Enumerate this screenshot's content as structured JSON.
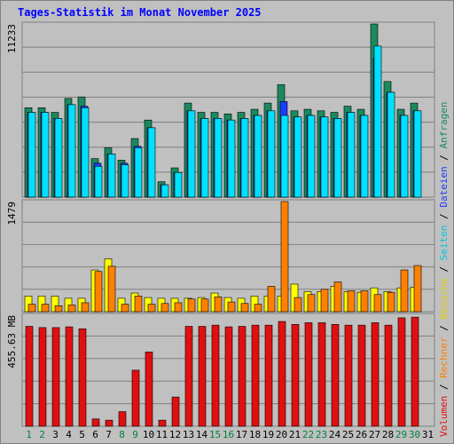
{
  "title": "Tages-Statistik im Monat November 2025",
  "chart_data": [
    {
      "type": "bar",
      "panel": "top",
      "max_label": "11233",
      "ylim": [
        0,
        11233
      ],
      "categories": [
        "1",
        "2",
        "3",
        "4",
        "5",
        "6",
        "7",
        "8",
        "9",
        "10",
        "11",
        "12",
        "13",
        "14",
        "15",
        "16",
        "17",
        "18",
        "19",
        "20",
        "21",
        "22",
        "23",
        "24",
        "25",
        "26",
        "27",
        "28",
        "29",
        "30"
      ],
      "series": [
        {
          "name": "Anfragen",
          "color": "#1a8a5e",
          "values": [
            5800,
            5800,
            5500,
            6400,
            6500,
            2500,
            3200,
            2400,
            3800,
            5000,
            1000,
            1900,
            6100,
            5500,
            5500,
            5400,
            5500,
            5700,
            6100,
            7300,
            5600,
            5700,
            5600,
            5500,
            5900,
            5700,
            11233,
            7500,
            5700,
            6100
          ]
        },
        {
          "name": "Dateien",
          "color": "#1e3cff",
          "values": [
            5500,
            5500,
            5100,
            6000,
            5900,
            2200,
            2800,
            2200,
            3300,
            4500,
            800,
            1600,
            5600,
            5100,
            5100,
            5000,
            5100,
            5300,
            5600,
            6200,
            5200,
            5300,
            5200,
            5100,
            5500,
            5300,
            9000,
            6800,
            5300,
            5600
          ]
        },
        {
          "name": "Seiten",
          "color": "#00e0ff",
          "values": [
            5500,
            5500,
            5100,
            6000,
            5800,
            2000,
            2800,
            2100,
            3200,
            4500,
            800,
            1600,
            5600,
            5100,
            5100,
            5000,
            5100,
            5300,
            5600,
            5300,
            5200,
            5300,
            5200,
            5100,
            5500,
            5300,
            9800,
            6800,
            5300,
            5600
          ]
        }
      ]
    },
    {
      "type": "bar",
      "panel": "middle",
      "max_label": "1479",
      "ylim": [
        0,
        1479
      ],
      "categories": [
        "1",
        "2",
        "3",
        "4",
        "5",
        "6",
        "7",
        "8",
        "9",
        "10",
        "11",
        "12",
        "13",
        "14",
        "15",
        "16",
        "17",
        "18",
        "19",
        "20",
        "21",
        "22",
        "23",
        "24",
        "25",
        "26",
        "27",
        "28",
        "29",
        "30"
      ],
      "series": [
        {
          "name": "Besuche",
          "color": "#ffff00",
          "values": [
            210,
            210,
            210,
            180,
            180,
            560,
            710,
            180,
            250,
            190,
            180,
            180,
            180,
            190,
            250,
            190,
            180,
            210,
            210,
            210,
            370,
            270,
            270,
            340,
            270,
            260,
            320,
            270,
            320,
            330
          ]
        },
        {
          "name": "Rechner",
          "color": "#ff8000",
          "values": [
            100,
            100,
            80,
            90,
            120,
            540,
            610,
            100,
            210,
            100,
            110,
            120,
            170,
            170,
            200,
            130,
            110,
            100,
            340,
            1479,
            190,
            230,
            300,
            400,
            280,
            280,
            230,
            260,
            560,
            620
          ]
        }
      ]
    },
    {
      "type": "bar",
      "panel": "bottom",
      "max_label": "455.63 MB",
      "ylim": [
        0,
        455.63
      ],
      "categories": [
        "1",
        "2",
        "3",
        "4",
        "5",
        "6",
        "7",
        "8",
        "9",
        "10",
        "11",
        "12",
        "13",
        "14",
        "15",
        "16",
        "17",
        "18",
        "19",
        "20",
        "21",
        "22",
        "23",
        "24",
        "25",
        "26",
        "27",
        "28",
        "29",
        "30"
      ],
      "series": [
        {
          "name": "Volumen",
          "color": "#e01010",
          "values": [
            410,
            405,
            405,
            408,
            400,
            30,
            25,
            60,
            230,
            305,
            25,
            120,
            410,
            410,
            415,
            408,
            410,
            415,
            415,
            430,
            418,
            425,
            425,
            418,
            415,
            415,
            425,
            415,
            445,
            448
          ]
        }
      ]
    }
  ],
  "x_labels": [
    {
      "text": "1",
      "color": "#008040"
    },
    {
      "text": "2",
      "color": "#008040"
    },
    {
      "text": "3",
      "color": "#000000"
    },
    {
      "text": "4",
      "color": "#000000"
    },
    {
      "text": "5",
      "color": "#000000"
    },
    {
      "text": "6",
      "color": "#000000"
    },
    {
      "text": "7",
      "color": "#000000"
    },
    {
      "text": "8",
      "color": "#008040"
    },
    {
      "text": "9",
      "color": "#008040"
    },
    {
      "text": "10",
      "color": "#000000"
    },
    {
      "text": "11",
      "color": "#000000"
    },
    {
      "text": "12",
      "color": "#000000"
    },
    {
      "text": "13",
      "color": "#000000"
    },
    {
      "text": "14",
      "color": "#000000"
    },
    {
      "text": "15",
      "color": "#008040"
    },
    {
      "text": "16",
      "color": "#008040"
    },
    {
      "text": "17",
      "color": "#000000"
    },
    {
      "text": "18",
      "color": "#000000"
    },
    {
      "text": "19",
      "color": "#000000"
    },
    {
      "text": "20",
      "color": "#000000"
    },
    {
      "text": "21",
      "color": "#000000"
    },
    {
      "text": "22",
      "color": "#008040"
    },
    {
      "text": "23",
      "color": "#008040"
    },
    {
      "text": "24",
      "color": "#000000"
    },
    {
      "text": "25",
      "color": "#000000"
    },
    {
      "text": "26",
      "color": "#000000"
    },
    {
      "text": "27",
      "color": "#000000"
    },
    {
      "text": "28",
      "color": "#000000"
    },
    {
      "text": "29",
      "color": "#008040"
    },
    {
      "text": "30",
      "color": "#008040"
    },
    {
      "text": "31",
      "color": "#000000"
    }
  ],
  "right_legend": [
    {
      "text": "Volumen",
      "color": "#e01010"
    },
    {
      "text": " / ",
      "color": "#000000"
    },
    {
      "text": "Rechner",
      "color": "#ff8000"
    },
    {
      "text": " / ",
      "color": "#000000"
    },
    {
      "text": "Besuche",
      "color": "#e0d000"
    },
    {
      "text": " / ",
      "color": "#000000"
    },
    {
      "text": "Seiten",
      "color": "#00c8e0"
    },
    {
      "text": " / ",
      "color": "#000000"
    },
    {
      "text": "Dateien",
      "color": "#1e3cff"
    },
    {
      "text": " / ",
      "color": "#000000"
    },
    {
      "text": "Anfragen",
      "color": "#1a8a5e"
    }
  ]
}
